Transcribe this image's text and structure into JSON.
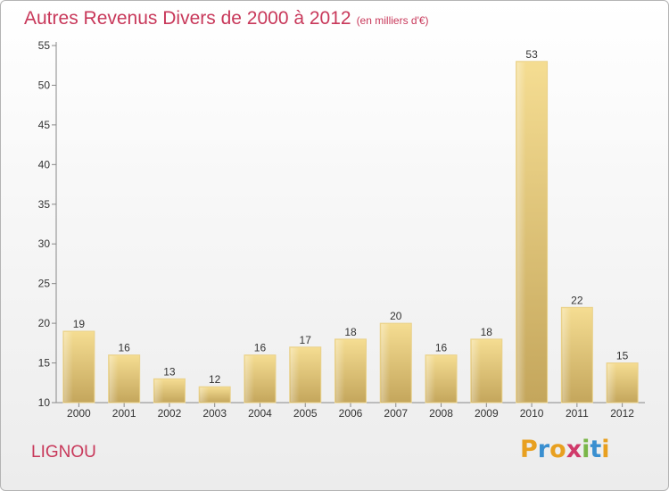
{
  "header": {
    "title": "Autres Revenus Divers de 2000 à 2012",
    "subtitle": "(en milliers d'€)"
  },
  "footer": {
    "commune": "LIGNOU",
    "logo": [
      "P",
      "r",
      "o",
      "x",
      "i",
      "t",
      "i"
    ],
    "logo_colors": [
      "#e8a020",
      "#3a8fd0",
      "#e8a020",
      "#d03a6a",
      "#7ab648",
      "#3a8fd0",
      "#e8a020"
    ]
  },
  "chart_data": {
    "type": "bar",
    "title": "Autres Revenus Divers de 2000 à 2012",
    "subtitle": "(en milliers d'€)",
    "categories": [
      "2000",
      "2001",
      "2002",
      "2003",
      "2004",
      "2005",
      "2006",
      "2007",
      "2008",
      "2009",
      "2010",
      "2011",
      "2012"
    ],
    "values": [
      19,
      16,
      13,
      12,
      16,
      17,
      18,
      20,
      16,
      18,
      53,
      22,
      15
    ],
    "ylim": [
      10,
      55
    ],
    "yticks": [
      10,
      15,
      20,
      25,
      30,
      35,
      40,
      45,
      50,
      55
    ],
    "grid": false,
    "bar_color": "#d4b76a",
    "bar_highlight": "#f5dd92"
  }
}
